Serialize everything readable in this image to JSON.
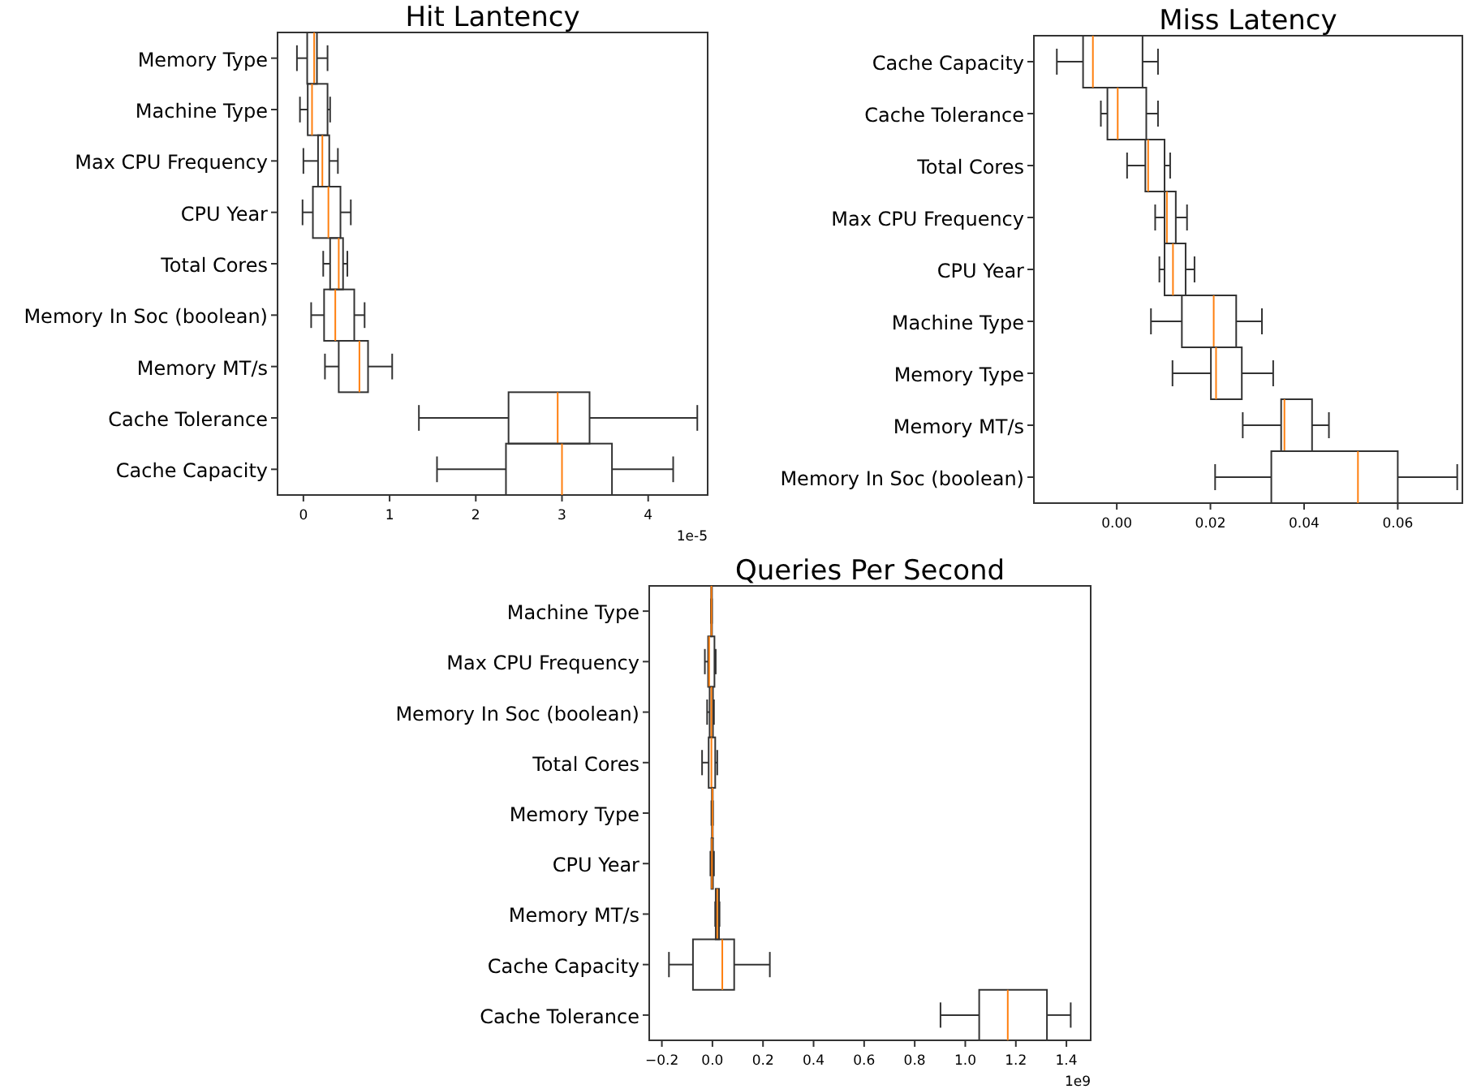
{
  "chart_data": [
    {
      "type": "box",
      "orientation": "horizontal",
      "title": "Hit Lantency",
      "categories": [
        "Memory Type",
        "Machine Type",
        "Max CPU Frequency",
        "CPU Year",
        "Total Cores",
        "Memory In Soc (boolean)",
        "Memory MT/s",
        "Cache Tolerance",
        "Cache Capacity"
      ],
      "boxes": [
        {
          "low": -0.075,
          "q1": 0.044,
          "median": 0.125,
          "q3": 0.157,
          "high": 0.28
        },
        {
          "low": -0.04,
          "q1": 0.05,
          "median": 0.1,
          "q3": 0.28,
          "high": 0.31
        },
        {
          "low": 0,
          "q1": 0.17,
          "median": 0.22,
          "q3": 0.3,
          "high": 0.4
        },
        {
          "low": -0.01,
          "q1": 0.11,
          "median": 0.29,
          "q3": 0.43,
          "high": 0.55
        },
        {
          "low": 0.23,
          "q1": 0.31,
          "median": 0.41,
          "q3": 0.46,
          "high": 0.51
        },
        {
          "low": 0.09,
          "q1": 0.24,
          "median": 0.37,
          "q3": 0.59,
          "high": 0.71
        },
        {
          "low": 0.25,
          "q1": 0.41,
          "median": 0.65,
          "q3": 0.75,
          "high": 1.03
        },
        {
          "low": 1.34,
          "q1": 2.38,
          "median": 2.95,
          "q3": 3.32,
          "high": 4.57
        },
        {
          "low": 1.55,
          "q1": 2.35,
          "median": 3.0,
          "q3": 3.58,
          "high": 4.29
        }
      ],
      "xlim": [
        -0.3,
        4.69
      ],
      "xticks": [
        0,
        1,
        2,
        3,
        4
      ],
      "annotations": [
        "1e-5"
      ]
    },
    {
      "type": "box",
      "orientation": "horizontal",
      "title": "Miss Latency",
      "categories": [
        "Cache Capacity",
        "Cache Tolerance",
        "Total Cores",
        "Max CPU Frequency",
        "CPU Year",
        "Machine Type",
        "Memory Type",
        "Memory MT/s",
        "Memory In Soc (boolean)"
      ],
      "boxes": [
        {
          "low": -0.0128,
          "q1": -0.0072,
          "median": -0.0051,
          "q3": 0.0055,
          "high": 0.0088
        },
        {
          "low": -0.0034,
          "q1": -0.002,
          "median": 0.0002,
          "q3": 0.0063,
          "high": 0.0088
        },
        {
          "low": 0.0022,
          "q1": 0.0061,
          "median": 0.0067,
          "q3": 0.0102,
          "high": 0.0114
        },
        {
          "low": 0.0082,
          "q1": 0.0102,
          "median": 0.0107,
          "q3": 0.0126,
          "high": 0.015
        },
        {
          "low": 0.0091,
          "q1": 0.0102,
          "median": 0.012,
          "q3": 0.0147,
          "high": 0.0166
        },
        {
          "low": 0.0073,
          "q1": 0.0139,
          "median": 0.0207,
          "q3": 0.0255,
          "high": 0.031
        },
        {
          "low": 0.0119,
          "q1": 0.0201,
          "median": 0.0212,
          "q3": 0.0267,
          "high": 0.0334
        },
        {
          "low": 0.0269,
          "q1": 0.0351,
          "median": 0.0358,
          "q3": 0.0417,
          "high": 0.0453
        },
        {
          "low": 0.021,
          "q1": 0.033,
          "median": 0.0515,
          "q3": 0.06,
          "high": 0.0727
        }
      ],
      "xlim": [
        -0.0177,
        0.0738
      ],
      "xticks": [
        {
          "value": 0,
          "label": "0.00"
        },
        {
          "value": 0.02,
          "label": "0.02"
        },
        {
          "value": 0.04,
          "label": "0.04"
        },
        {
          "value": 0.06,
          "label": "0.06"
        }
      ]
    },
    {
      "type": "box",
      "orientation": "horizontal",
      "title": "Queries Per Second",
      "categories": [
        "Machine Type",
        "Max CPU Frequency",
        "Memory In Soc (boolean)",
        "Total Cores",
        "Memory Type",
        "CPU Year",
        "Memory MT/s",
        "Cache Capacity",
        "Cache Tolerance"
      ],
      "boxes": [
        {
          "low": -0.006,
          "q1": -0.005,
          "median": -0.004,
          "q3": -0.003,
          "high": -0.002
        },
        {
          "low": -0.03,
          "q1": -0.017,
          "median": -0.013,
          "q3": 0.008,
          "high": 0.013
        },
        {
          "low": -0.021,
          "q1": -0.011,
          "median": -0.004,
          "q3": 0.002,
          "high": 0.006
        },
        {
          "low": -0.041,
          "q1": -0.015,
          "median": -0.004,
          "q3": 0.011,
          "high": 0.019
        },
        {
          "low": -0.004,
          "q1": -0.002,
          "median": 0.0,
          "q3": 0.001,
          "high": 0.002
        },
        {
          "low": -0.008,
          "q1": -0.004,
          "median": -0.002,
          "q3": 0.002,
          "high": 0.006
        },
        {
          "low": 0.011,
          "q1": 0.013,
          "median": 0.019,
          "q3": 0.026,
          "high": 0.028
        },
        {
          "low": -0.172,
          "q1": -0.077,
          "median": 0.039,
          "q3": 0.086,
          "high": 0.227
        },
        {
          "low": 0.902,
          "q1": 1.055,
          "median": 1.168,
          "q3": 1.323,
          "high": 1.417
        }
      ],
      "xlim": [
        -0.25,
        1.496
      ],
      "xticks": [
        {
          "value": -0.2,
          "label": "−0.2"
        },
        {
          "value": 0,
          "label": "0.0"
        },
        {
          "value": 0.2,
          "label": "0.2"
        },
        {
          "value": 0.4,
          "label": "0.4"
        },
        {
          "value": 0.6,
          "label": "0.6"
        },
        {
          "value": 0.8,
          "label": "0.8"
        },
        {
          "value": 1.0,
          "label": "1.0"
        },
        {
          "value": 1.2,
          "label": "1.2"
        },
        {
          "value": 1.4,
          "label": "1.4"
        }
      ],
      "annotations": [
        "1e9"
      ]
    }
  ]
}
